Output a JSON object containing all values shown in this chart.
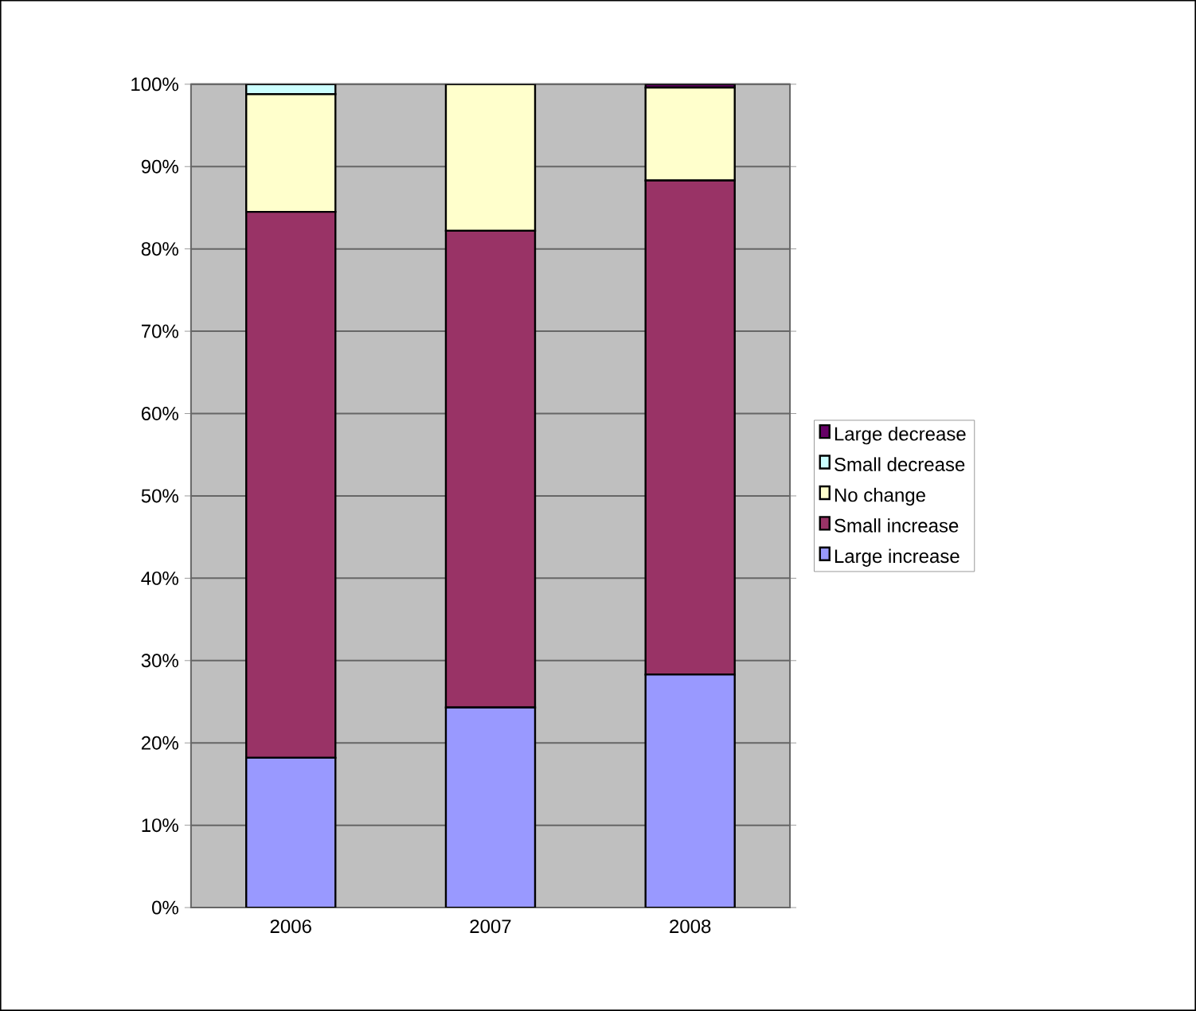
{
  "chart_data": {
    "type": "bar",
    "stacked": true,
    "categories": [
      "2006",
      "2007",
      "2008"
    ],
    "series": [
      {
        "name": "Large increase",
        "color": "#9999ff",
        "values": [
          18.2,
          24.3,
          28.3
        ]
      },
      {
        "name": "Small increase",
        "color": "#993366",
        "values": [
          66.3,
          57.9,
          60.0
        ]
      },
      {
        "name": "No change",
        "color": "#ffffcc",
        "values": [
          14.3,
          17.8,
          11.3
        ]
      },
      {
        "name": "Small decrease",
        "color": "#ccffff",
        "values": [
          1.2,
          0,
          0
        ]
      },
      {
        "name": "Large decrease",
        "color": "#660066",
        "values": [
          0,
          0,
          0.4
        ]
      }
    ],
    "ylim": [
      0,
      100
    ],
    "yticks": [
      {
        "value": 0,
        "label": "0%"
      },
      {
        "value": 10,
        "label": "10%"
      },
      {
        "value": 20,
        "label": "20%"
      },
      {
        "value": 30,
        "label": "30%"
      },
      {
        "value": 40,
        "label": "40%"
      },
      {
        "value": 50,
        "label": "50%"
      },
      {
        "value": 60,
        "label": "60%"
      },
      {
        "value": 70,
        "label": "70%"
      },
      {
        "value": 80,
        "label": "80%"
      },
      {
        "value": 90,
        "label": "90%"
      },
      {
        "value": 100,
        "label": "100%"
      }
    ],
    "grid": "y",
    "legend": "right"
  }
}
